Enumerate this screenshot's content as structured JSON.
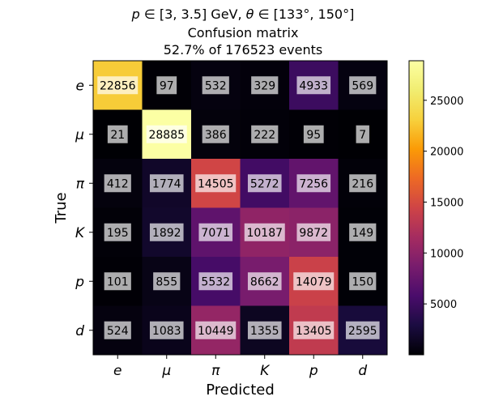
{
  "chart_data": {
    "type": "heatmap",
    "title": {
      "line1_p": "p",
      "line1_p_range": "∈ [3, 3.5] GeV,",
      "line1_theta": "θ",
      "line1_theta_range": "∈ [133°, 150°]",
      "line2": "Confusion matrix",
      "line3": "52.7% of 176523 events"
    },
    "xlabel": "Predicted",
    "ylabel": "True",
    "x_categories": [
      "e",
      "μ",
      "π",
      "K",
      "p",
      "d"
    ],
    "y_categories": [
      "e",
      "μ",
      "π",
      "K",
      "p",
      "d"
    ],
    "values": [
      [
        22856,
        97,
        532,
        329,
        4933,
        569
      ],
      [
        21,
        28885,
        386,
        222,
        95,
        7
      ],
      [
        412,
        1774,
        14505,
        5272,
        7256,
        216
      ],
      [
        195,
        1892,
        7071,
        10187,
        9872,
        149
      ],
      [
        101,
        855,
        5532,
        8662,
        14079,
        150
      ],
      [
        524,
        1083,
        10449,
        1355,
        13405,
        2595
      ]
    ],
    "colormap": "inferno",
    "color_range": [
      0,
      28885
    ],
    "colorbar_ticks": [
      5000,
      10000,
      15000,
      20000,
      25000
    ],
    "grid": false,
    "legend": "colorbar-right"
  }
}
